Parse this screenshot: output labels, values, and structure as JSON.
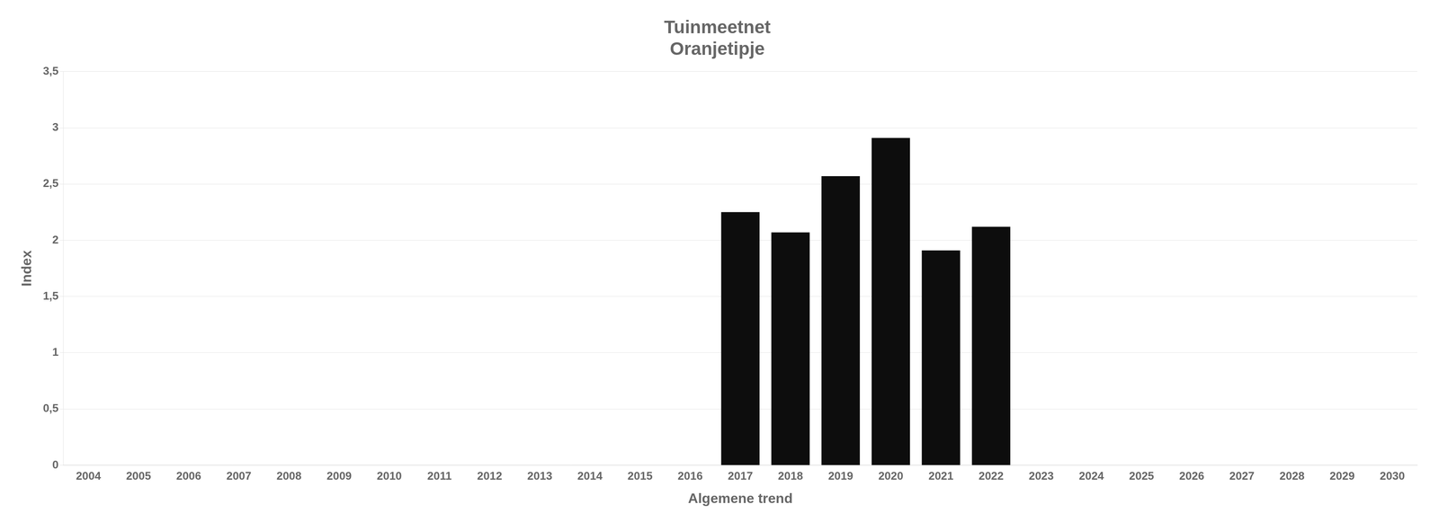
{
  "chart_data": {
    "type": "bar",
    "title": "Tuinmeetnet\nOranjetipje",
    "xlabel": "Algemene trend",
    "ylabel": "Index",
    "categories": [
      "2004",
      "2005",
      "2006",
      "2007",
      "2008",
      "2009",
      "2010",
      "2011",
      "2012",
      "2013",
      "2014",
      "2015",
      "2016",
      "2017",
      "2018",
      "2019",
      "2020",
      "2021",
      "2022",
      "2023",
      "2024",
      "2025",
      "2026",
      "2027",
      "2028",
      "2029",
      "2030"
    ],
    "values": [
      0,
      0,
      0,
      0,
      0,
      0,
      0,
      0,
      0,
      0,
      0,
      0,
      0.0,
      2.25,
      2.07,
      2.57,
      2.91,
      1.91,
      2.12,
      0,
      0,
      0,
      0,
      0,
      0,
      0,
      0
    ],
    "color": "#0d0d0d",
    "ylim": [
      0,
      3.5
    ],
    "yticks": [
      0,
      {
        "value": 0.5,
        "label": "0,5"
      },
      1,
      {
        "value": 1.5,
        "label": "1,5"
      },
      2,
      {
        "value": 2.5,
        "label": "2,5"
      },
      3,
      {
        "value": 3.5,
        "label": "3,5"
      }
    ],
    "grid": true
  }
}
